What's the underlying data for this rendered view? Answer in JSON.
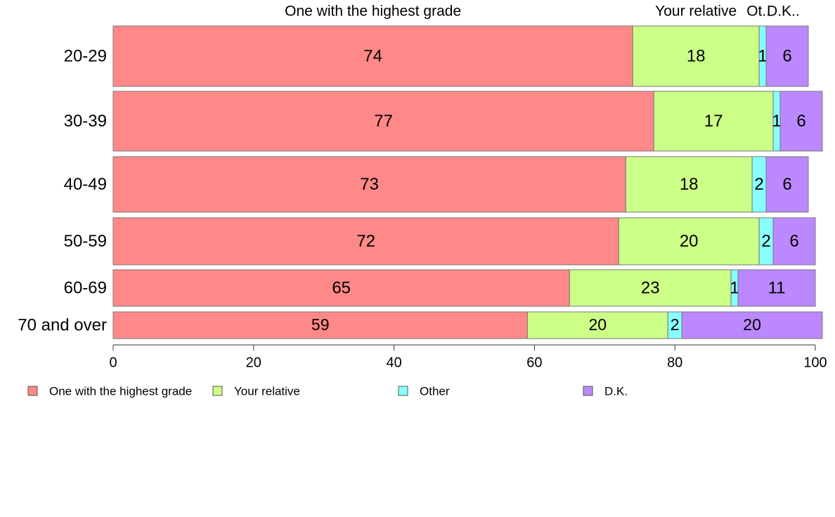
{
  "chart_data": {
    "type": "bar",
    "orientation": "horizontal",
    "stacked": true,
    "categories": [
      "20-29",
      "30-39",
      "40-49",
      "50-59",
      "60-69",
      "70 and over"
    ],
    "series": [
      {
        "name": "One with the highest grade",
        "header": "One with the highest grade",
        "color": "#ff8888",
        "values": [
          74,
          77,
          73,
          72,
          65,
          59
        ]
      },
      {
        "name": "Your relative",
        "header": "Your relative",
        "color": "#ccff88",
        "values": [
          18,
          17,
          18,
          20,
          23,
          20
        ]
      },
      {
        "name": "Other",
        "header": "Ot..",
        "color": "#88ffff",
        "values": [
          1,
          1,
          2,
          2,
          1,
          2
        ]
      },
      {
        "name": "D.K.",
        "header": "D.K..",
        "color": "#bb88ff",
        "values": [
          6,
          6,
          6,
          6,
          11,
          20
        ]
      }
    ],
    "xlim": [
      0,
      100
    ],
    "xticks": [
      0,
      20,
      40,
      60,
      80,
      100
    ],
    "xlabel": "",
    "ylabel": "",
    "grid": false,
    "legend_position": "bottom-left"
  }
}
